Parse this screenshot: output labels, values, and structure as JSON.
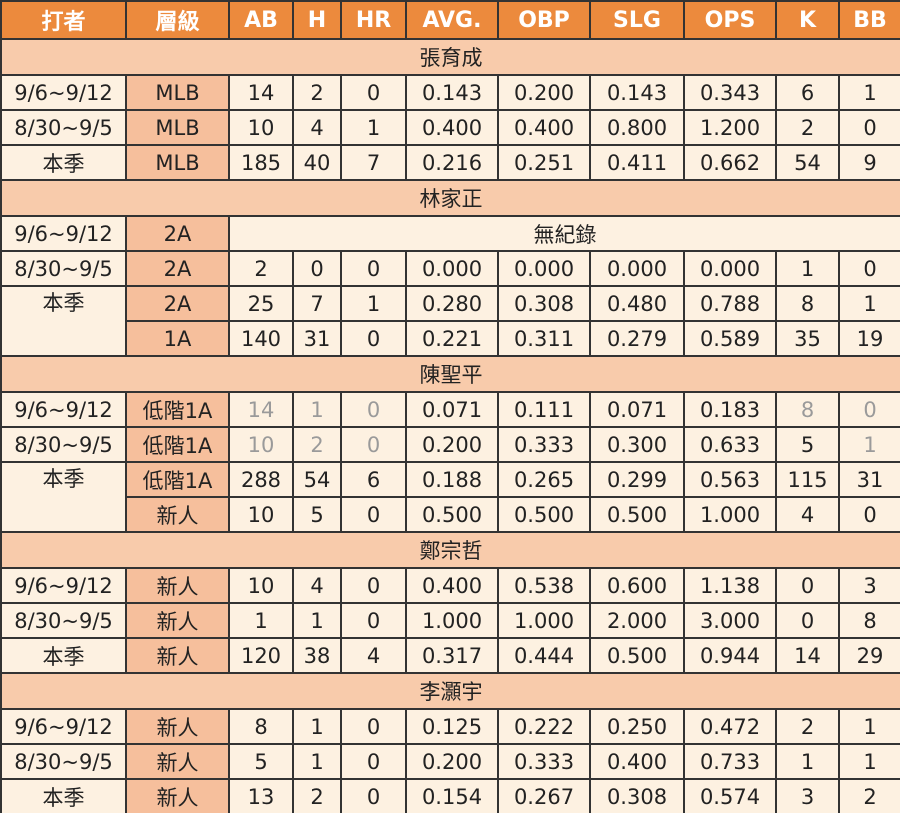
{
  "header": {
    "columns": [
      "打者",
      "層級",
      "AB",
      "H",
      "HR",
      "AVG.",
      "OBP",
      "SLG",
      "OPS",
      "K",
      "BB"
    ]
  },
  "sections": [
    {
      "player": "張育成",
      "rows": [
        {
          "period": "9/6~9/12",
          "level": "MLB",
          "stats": [
            "14",
            "2",
            "0",
            "0.143",
            "0.200",
            "0.143",
            "0.343",
            "6",
            "1"
          ]
        },
        {
          "period": "8/30~9/5",
          "level": "MLB",
          "stats": [
            "10",
            "4",
            "1",
            "0.400",
            "0.400",
            "0.800",
            "1.200",
            "2",
            "0"
          ]
        },
        {
          "period": "本季",
          "level": "MLB",
          "stats": [
            "185",
            "40",
            "7",
            "0.216",
            "0.251",
            "0.411",
            "0.662",
            "54",
            "9"
          ]
        }
      ]
    },
    {
      "player": "林家正",
      "rows": [
        {
          "period": "9/6~9/12",
          "level": "2A",
          "note": "無紀錄"
        },
        {
          "period": "8/30~9/5",
          "level": "2A",
          "stats": [
            "2",
            "0",
            "0",
            "0.000",
            "0.000",
            "0.000",
            "0.000",
            "1",
            "0"
          ]
        },
        {
          "period": "本季",
          "level": "2A",
          "stats": [
            "25",
            "7",
            "1",
            "0.280",
            "0.308",
            "0.480",
            "0.788",
            "8",
            "1"
          ]
        },
        {
          "level": "1A",
          "stats": [
            "140",
            "31",
            "0",
            "0.221",
            "0.311",
            "0.279",
            "0.589",
            "35",
            "19"
          ]
        }
      ]
    },
    {
      "player": "陳聖平",
      "rows": [
        {
          "period": "9/6~9/12",
          "level": "低階1A",
          "stats": [
            "14",
            "1",
            "0",
            "0.071",
            "0.111",
            "0.071",
            "0.183",
            "8",
            "0"
          ],
          "muted": [
            0,
            1,
            2,
            7,
            8
          ]
        },
        {
          "period": "8/30~9/5",
          "level": "低階1A",
          "stats": [
            "10",
            "2",
            "0",
            "0.200",
            "0.333",
            "0.300",
            "0.633",
            "5",
            "1"
          ],
          "muted": [
            0,
            1,
            2,
            8
          ]
        },
        {
          "period": "本季",
          "level": "低階1A",
          "stats": [
            "288",
            "54",
            "6",
            "0.188",
            "0.265",
            "0.299",
            "0.563",
            "115",
            "31"
          ]
        },
        {
          "level": "新人",
          "stats": [
            "10",
            "5",
            "0",
            "0.500",
            "0.500",
            "0.500",
            "1.000",
            "4",
            "0"
          ]
        }
      ]
    },
    {
      "player": "鄭宗哲",
      "rows": [
        {
          "period": "9/6~9/12",
          "level": "新人",
          "stats": [
            "10",
            "4",
            "0",
            "0.400",
            "0.538",
            "0.600",
            "1.138",
            "0",
            "3"
          ]
        },
        {
          "period": "8/30~9/5",
          "level": "新人",
          "stats": [
            "1",
            "1",
            "0",
            "1.000",
            "1.000",
            "2.000",
            "3.000",
            "0",
            "8"
          ]
        },
        {
          "period": "本季",
          "level": "新人",
          "stats": [
            "120",
            "38",
            "4",
            "0.317",
            "0.444",
            "0.500",
            "0.944",
            "14",
            "29"
          ]
        }
      ]
    },
    {
      "player": "李灝宇",
      "rows": [
        {
          "period": "9/6~9/12",
          "level": "新人",
          "stats": [
            "8",
            "1",
            "0",
            "0.125",
            "0.222",
            "0.250",
            "0.472",
            "2",
            "1"
          ]
        },
        {
          "period": "8/30~9/5",
          "level": "新人",
          "stats": [
            "5",
            "1",
            "0",
            "0.200",
            "0.333",
            "0.400",
            "0.733",
            "1",
            "1"
          ]
        },
        {
          "period": "本季",
          "level": "新人",
          "stats": [
            "13",
            "2",
            "0",
            "0.154",
            "0.267",
            "0.308",
            "0.574",
            "3",
            "2"
          ]
        }
      ]
    }
  ]
}
